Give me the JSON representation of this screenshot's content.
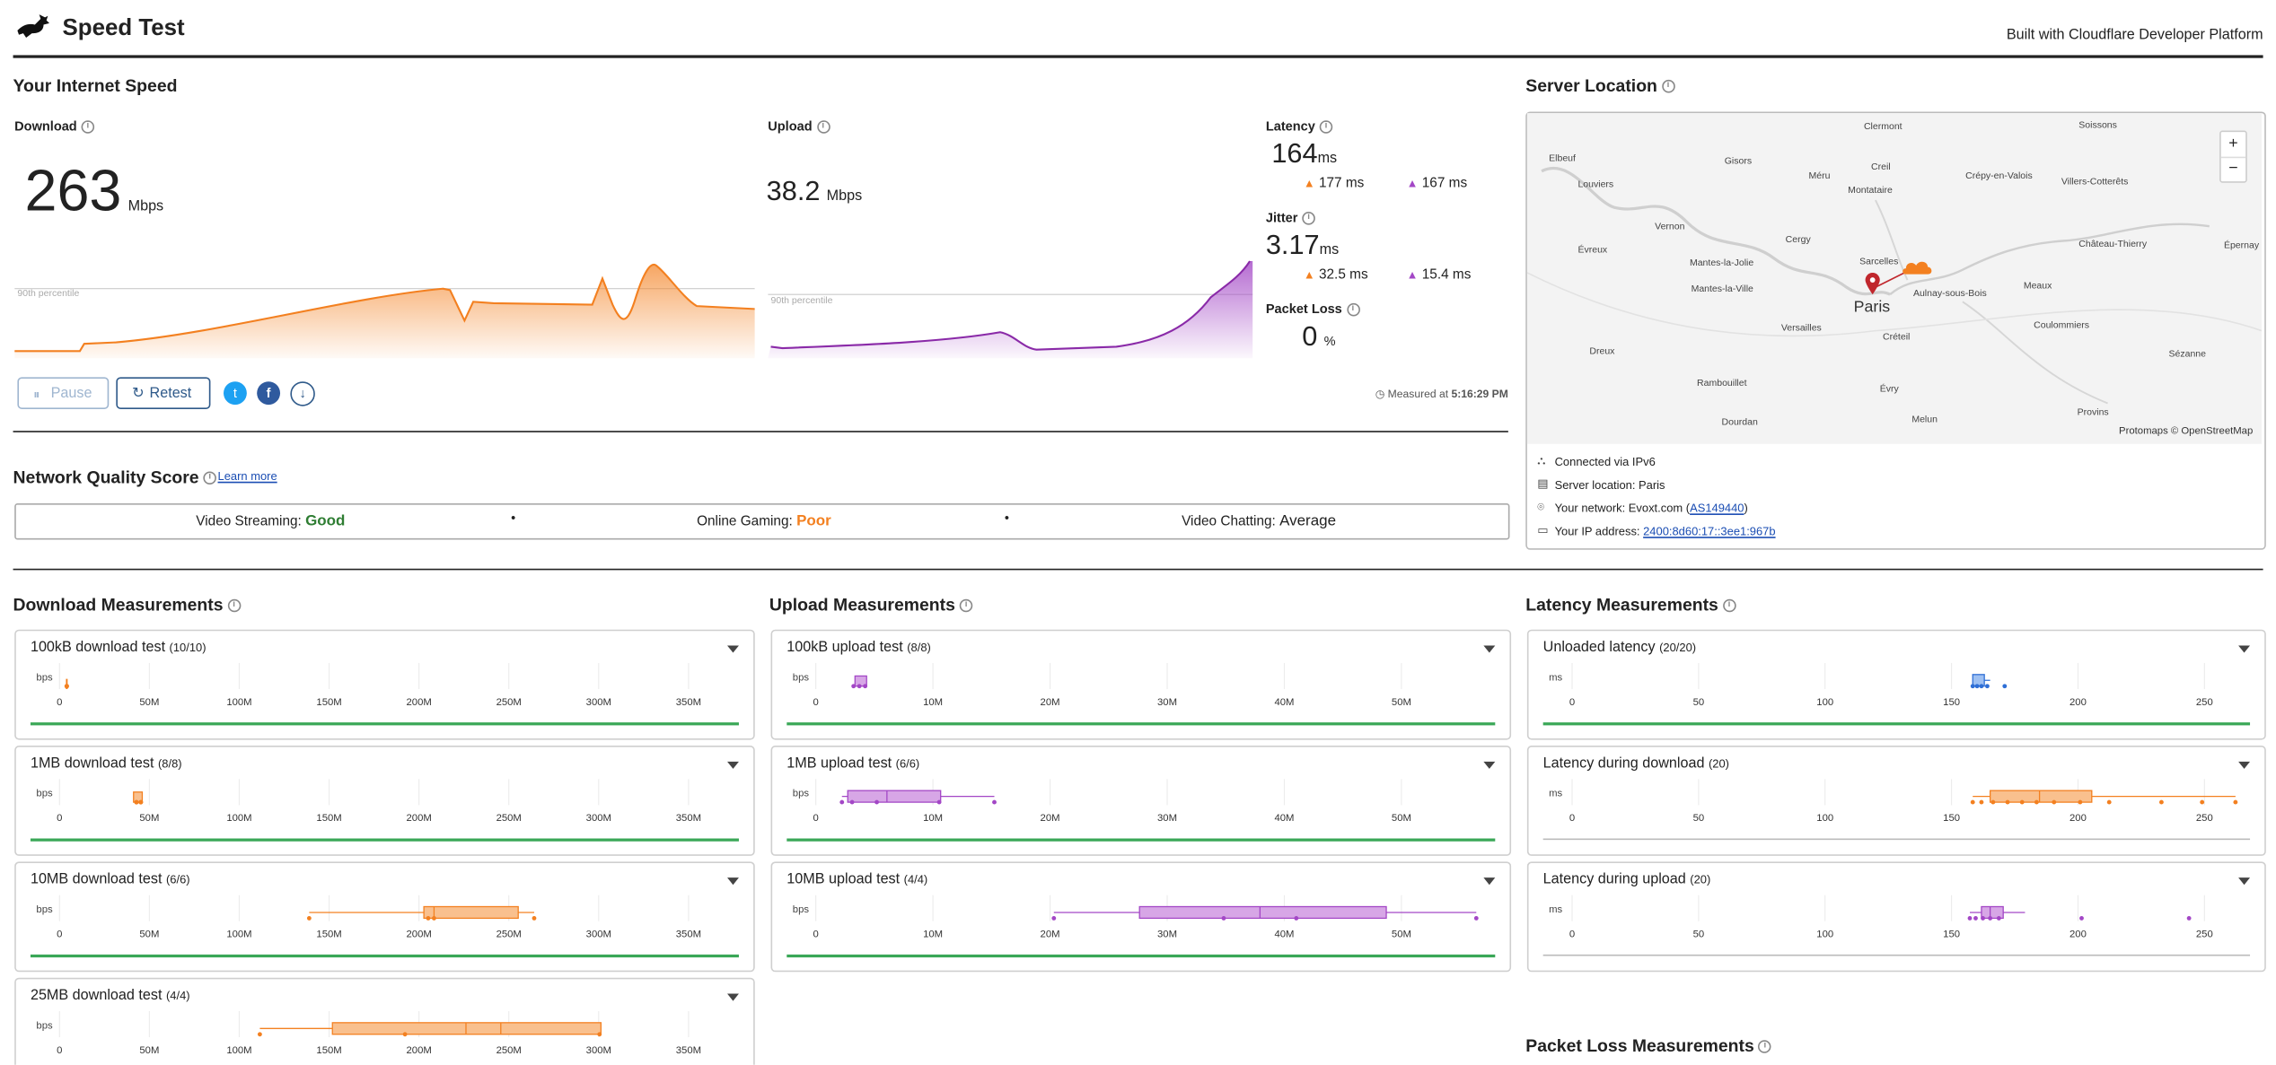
{
  "header": {
    "title": "Speed Test",
    "builtwith": "Built with Cloudflare Developer Platform"
  },
  "speed": {
    "title": "Your Internet Speed",
    "download": {
      "label": "Download",
      "value": "263",
      "unit": "Mbps",
      "percentile": "90th percentile"
    },
    "upload": {
      "label": "Upload",
      "value": "38.2",
      "unit": "Mbps",
      "percentile": "90th percentile"
    },
    "latency": {
      "label": "Latency",
      "value": "164",
      "unit": "ms",
      "down": "177",
      "up": "167",
      "sub_unit": "ms"
    },
    "jitter": {
      "label": "Jitter",
      "value": "3.17",
      "unit": "ms",
      "down": "32.5",
      "up": "15.4",
      "sub_unit": "ms"
    },
    "packetloss": {
      "label": "Packet Loss",
      "value": "0",
      "unit": "%"
    },
    "buttons": {
      "pause": "Pause",
      "retest": "Retest"
    },
    "measured_label": "Measured at",
    "measured_time": "5:16:29 PM"
  },
  "nqs": {
    "title": "Network Quality Score",
    "learn": "Learn more",
    "items": [
      {
        "label": "Video Streaming:",
        "value": "Good",
        "color": "#2e7d32"
      },
      {
        "label": "Online Gaming:",
        "value": "Poor",
        "color": "#f38020"
      },
      {
        "label": "Video Chatting:",
        "value": "Average",
        "color": "#222222"
      }
    ],
    "dot": "•"
  },
  "server": {
    "title": "Server Location",
    "map_credit": "Protomaps © OpenStreetMap",
    "zoom_in": "+",
    "zoom_out": "−",
    "city": "Paris",
    "connected": "Connected via IPv6",
    "location": "Server location: Paris",
    "network_label": "Your network: Evoxt.com (",
    "network_asn": "AS149440",
    "network_close": ")",
    "ip_label": "Your IP address: ",
    "ip": "2400:8d60:17::3ee1:967b",
    "places": [
      "Clermont",
      "Soissons",
      "Elbeuf",
      "Gisors",
      "Méru",
      "Creil",
      "Louviers",
      "Crépy-en-Valois",
      "Villers-Cotterêts",
      "Montataire",
      "Vernon",
      "Cergy",
      "Sarcelles",
      "Château-Thierry",
      "Évreux",
      "Mantes-la-Jolie",
      "Épernay",
      "Mantes-la-Ville",
      "Aulnay-sous-Bois",
      "Meaux",
      "Versailles",
      "Créteil",
      "Coulommiers",
      "Dreux",
      "Sézanne",
      "Rambouillet",
      "Évry",
      "Provins",
      "Dourdan",
      "Melun"
    ]
  },
  "measurements": {
    "download": {
      "title": "Download Measurements",
      "unit": "bps",
      "ticks": [
        "0",
        "50M",
        "100M",
        "150M",
        "200M",
        "250M",
        "300M",
        "350M"
      ],
      "cards": [
        {
          "name": "100kB download test",
          "count": "(10/10)"
        },
        {
          "name": "1MB download test",
          "count": "(8/8)"
        },
        {
          "name": "10MB download test",
          "count": "(6/6)"
        },
        {
          "name": "25MB download test",
          "count": "(4/4)"
        }
      ]
    },
    "upload": {
      "title": "Upload Measurements",
      "unit": "bps",
      "ticks": [
        "0",
        "10M",
        "20M",
        "30M",
        "40M",
        "50M"
      ],
      "cards": [
        {
          "name": "100kB upload test",
          "count": "(8/8)"
        },
        {
          "name": "1MB upload test",
          "count": "(6/6)"
        },
        {
          "name": "10MB upload test",
          "count": "(4/4)"
        }
      ]
    },
    "latency": {
      "title": "Latency Measurements",
      "unit": "ms",
      "ticks": [
        "0",
        "50",
        "100",
        "150",
        "200",
        "250"
      ],
      "cards": [
        {
          "name": "Unloaded latency",
          "count": "(20/20)"
        },
        {
          "name": "Latency during download",
          "count": "(20)"
        },
        {
          "name": "Latency during upload",
          "count": "(20)"
        }
      ]
    },
    "packetloss": {
      "title": "Packet Loss Measurements"
    }
  },
  "colors": {
    "orange": "#f38020",
    "purple": "#a347c6",
    "blue": "#2f6fd6",
    "green": "#3aa757",
    "link": "#1a4db3"
  },
  "icons": [
    "rabbit-logo-icon",
    "info-icon",
    "pause-icon",
    "retest-icon",
    "twitter-icon",
    "facebook-icon",
    "download-icon",
    "clock-icon",
    "upload-arrow-icon",
    "download-arrow-icon",
    "map-pin-icon",
    "cloud-icon",
    "network-icon",
    "server-icon",
    "location-icon",
    "ip-card-icon",
    "chevron-down-icon"
  ]
}
